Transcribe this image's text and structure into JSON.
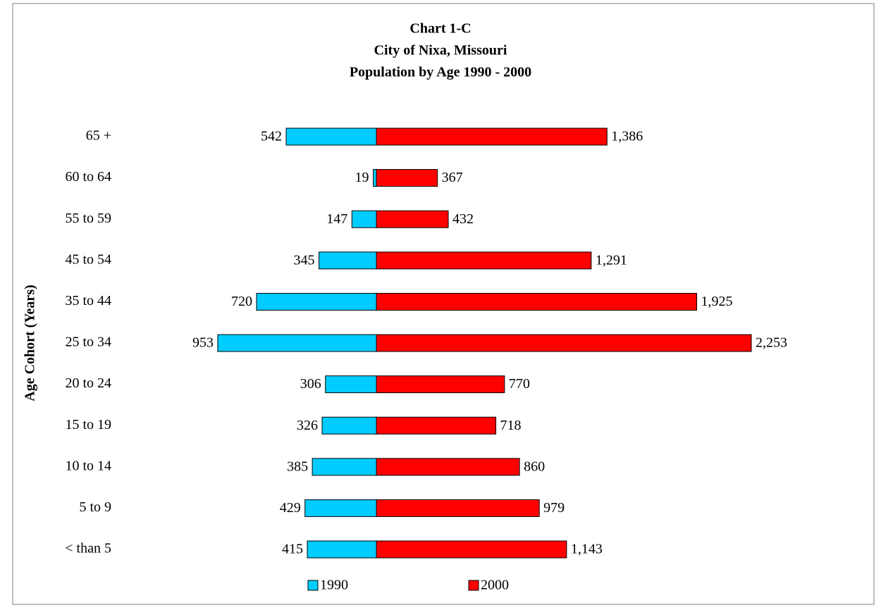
{
  "chart_data": {
    "type": "bar",
    "orientation": "horizontal-butterfly",
    "title": [
      "Chart 1-C",
      "City of Nixa, Missouri",
      "Population by Age 1990 - 2000"
    ],
    "y_label": "Age Cohort (Years)",
    "categories": [
      "65 +",
      "60 to 64",
      "55 to 59",
      "45 to 54",
      "35 to 44",
      "25 to 34",
      "20 to 24",
      "15 to 19",
      "10 to 14",
      "5 to 9",
      "< than 5"
    ],
    "series": [
      {
        "name": "1990",
        "color": "#00ccff",
        "side": "left",
        "values": [
          542,
          19,
          147,
          345,
          720,
          953,
          306,
          326,
          385,
          429,
          415
        ],
        "value_labels": [
          "542",
          "19",
          "147",
          "345",
          "720",
          "953",
          "306",
          "326",
          "385",
          "429",
          "415"
        ]
      },
      {
        "name": "2000",
        "color": "#ff0000",
        "side": "right",
        "values": [
          1386,
          367,
          432,
          1291,
          1925,
          2253,
          770,
          718,
          860,
          979,
          1143
        ],
        "value_labels": [
          "1,386",
          "367",
          "432",
          "1,291",
          "1,925",
          "2,253",
          "770",
          "718",
          "860",
          "979",
          "1,143"
        ]
      }
    ]
  }
}
